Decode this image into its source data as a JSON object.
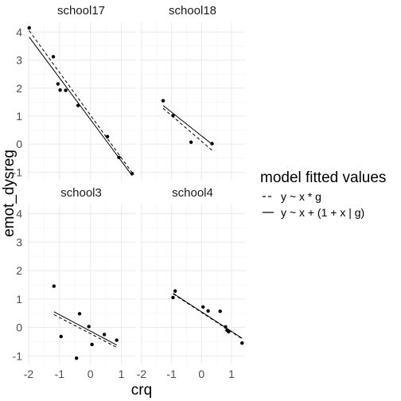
{
  "chart_data": {
    "type": "scatter",
    "facet_layout": "2x2 shared axes",
    "panels": [
      {
        "name": "school17",
        "points": [
          [
            -1.98,
            4.15
          ],
          [
            -1.2,
            3.12
          ],
          [
            -1.05,
            2.15
          ],
          [
            -0.98,
            1.93
          ],
          [
            -0.8,
            1.92
          ],
          [
            -0.4,
            1.38
          ],
          [
            0.55,
            0.27
          ],
          [
            0.92,
            -0.47
          ],
          [
            1.35,
            -1.05
          ]
        ],
        "fit_interaction": [
          [
            -1.98,
            4.05
          ],
          [
            1.35,
            -1.02
          ]
        ],
        "fit_mixed": [
          [
            -1.98,
            3.82
          ],
          [
            1.35,
            -1.12
          ]
        ]
      },
      {
        "name": "school18",
        "points": [
          [
            -1.28,
            1.55
          ],
          [
            -0.95,
            1.02
          ],
          [
            -0.35,
            0.07
          ],
          [
            0.35,
            0.02
          ]
        ],
        "fit_interaction": [
          [
            -1.28,
            1.28
          ],
          [
            0.35,
            -0.22
          ]
        ],
        "fit_mixed": [
          [
            -1.28,
            1.38
          ],
          [
            0.35,
            0.0
          ]
        ]
      },
      {
        "name": "school3",
        "points": [
          [
            -1.18,
            1.45
          ],
          [
            -0.95,
            -0.32
          ],
          [
            -0.45,
            -1.08
          ],
          [
            -0.35,
            0.48
          ],
          [
            -0.05,
            0.03
          ],
          [
            0.05,
            -0.6
          ],
          [
            0.45,
            -0.25
          ],
          [
            0.85,
            -0.45
          ]
        ],
        "fit_interaction": [
          [
            -1.18,
            0.45
          ],
          [
            0.85,
            -0.7
          ]
        ],
        "fit_mixed": [
          [
            -1.18,
            0.55
          ],
          [
            0.85,
            -0.62
          ]
        ]
      },
      {
        "name": "school4",
        "points": [
          [
            -0.95,
            1.05
          ],
          [
            -0.88,
            1.28
          ],
          [
            0.05,
            0.72
          ],
          [
            0.22,
            0.58
          ],
          [
            0.62,
            0.57
          ],
          [
            0.8,
            0.02
          ],
          [
            0.85,
            -0.1
          ],
          [
            0.9,
            -0.15
          ],
          [
            1.35,
            -0.55
          ]
        ],
        "fit_interaction": [
          [
            -0.95,
            1.18
          ],
          [
            1.35,
            -0.4
          ]
        ],
        "fit_mixed": [
          [
            -0.95,
            1.2
          ],
          [
            1.35,
            -0.38
          ]
        ]
      }
    ],
    "xlabel": "crq",
    "ylabel": "emot_dysreg",
    "xlim": [
      -2.05,
      1.45
    ],
    "ylim": [
      -1.3,
      4.35
    ],
    "xticks": [
      -2,
      -1,
      0,
      1
    ],
    "yticks": [
      -1,
      0,
      1,
      2,
      3,
      4
    ],
    "grid": true,
    "legend": {
      "title": "model fitted values",
      "position": "right",
      "entries": [
        {
          "label": "y ~ x * g",
          "linetype": "dashed"
        },
        {
          "label": "y ~ x + (1 + x | g)",
          "linetype": "solid"
        }
      ]
    },
    "colors": {
      "points": "#000000",
      "lines": "#000000",
      "grid_major": "#ebebeb",
      "grid_minor": "#f5f5f5",
      "tick_text": "#4d4d4d"
    }
  }
}
